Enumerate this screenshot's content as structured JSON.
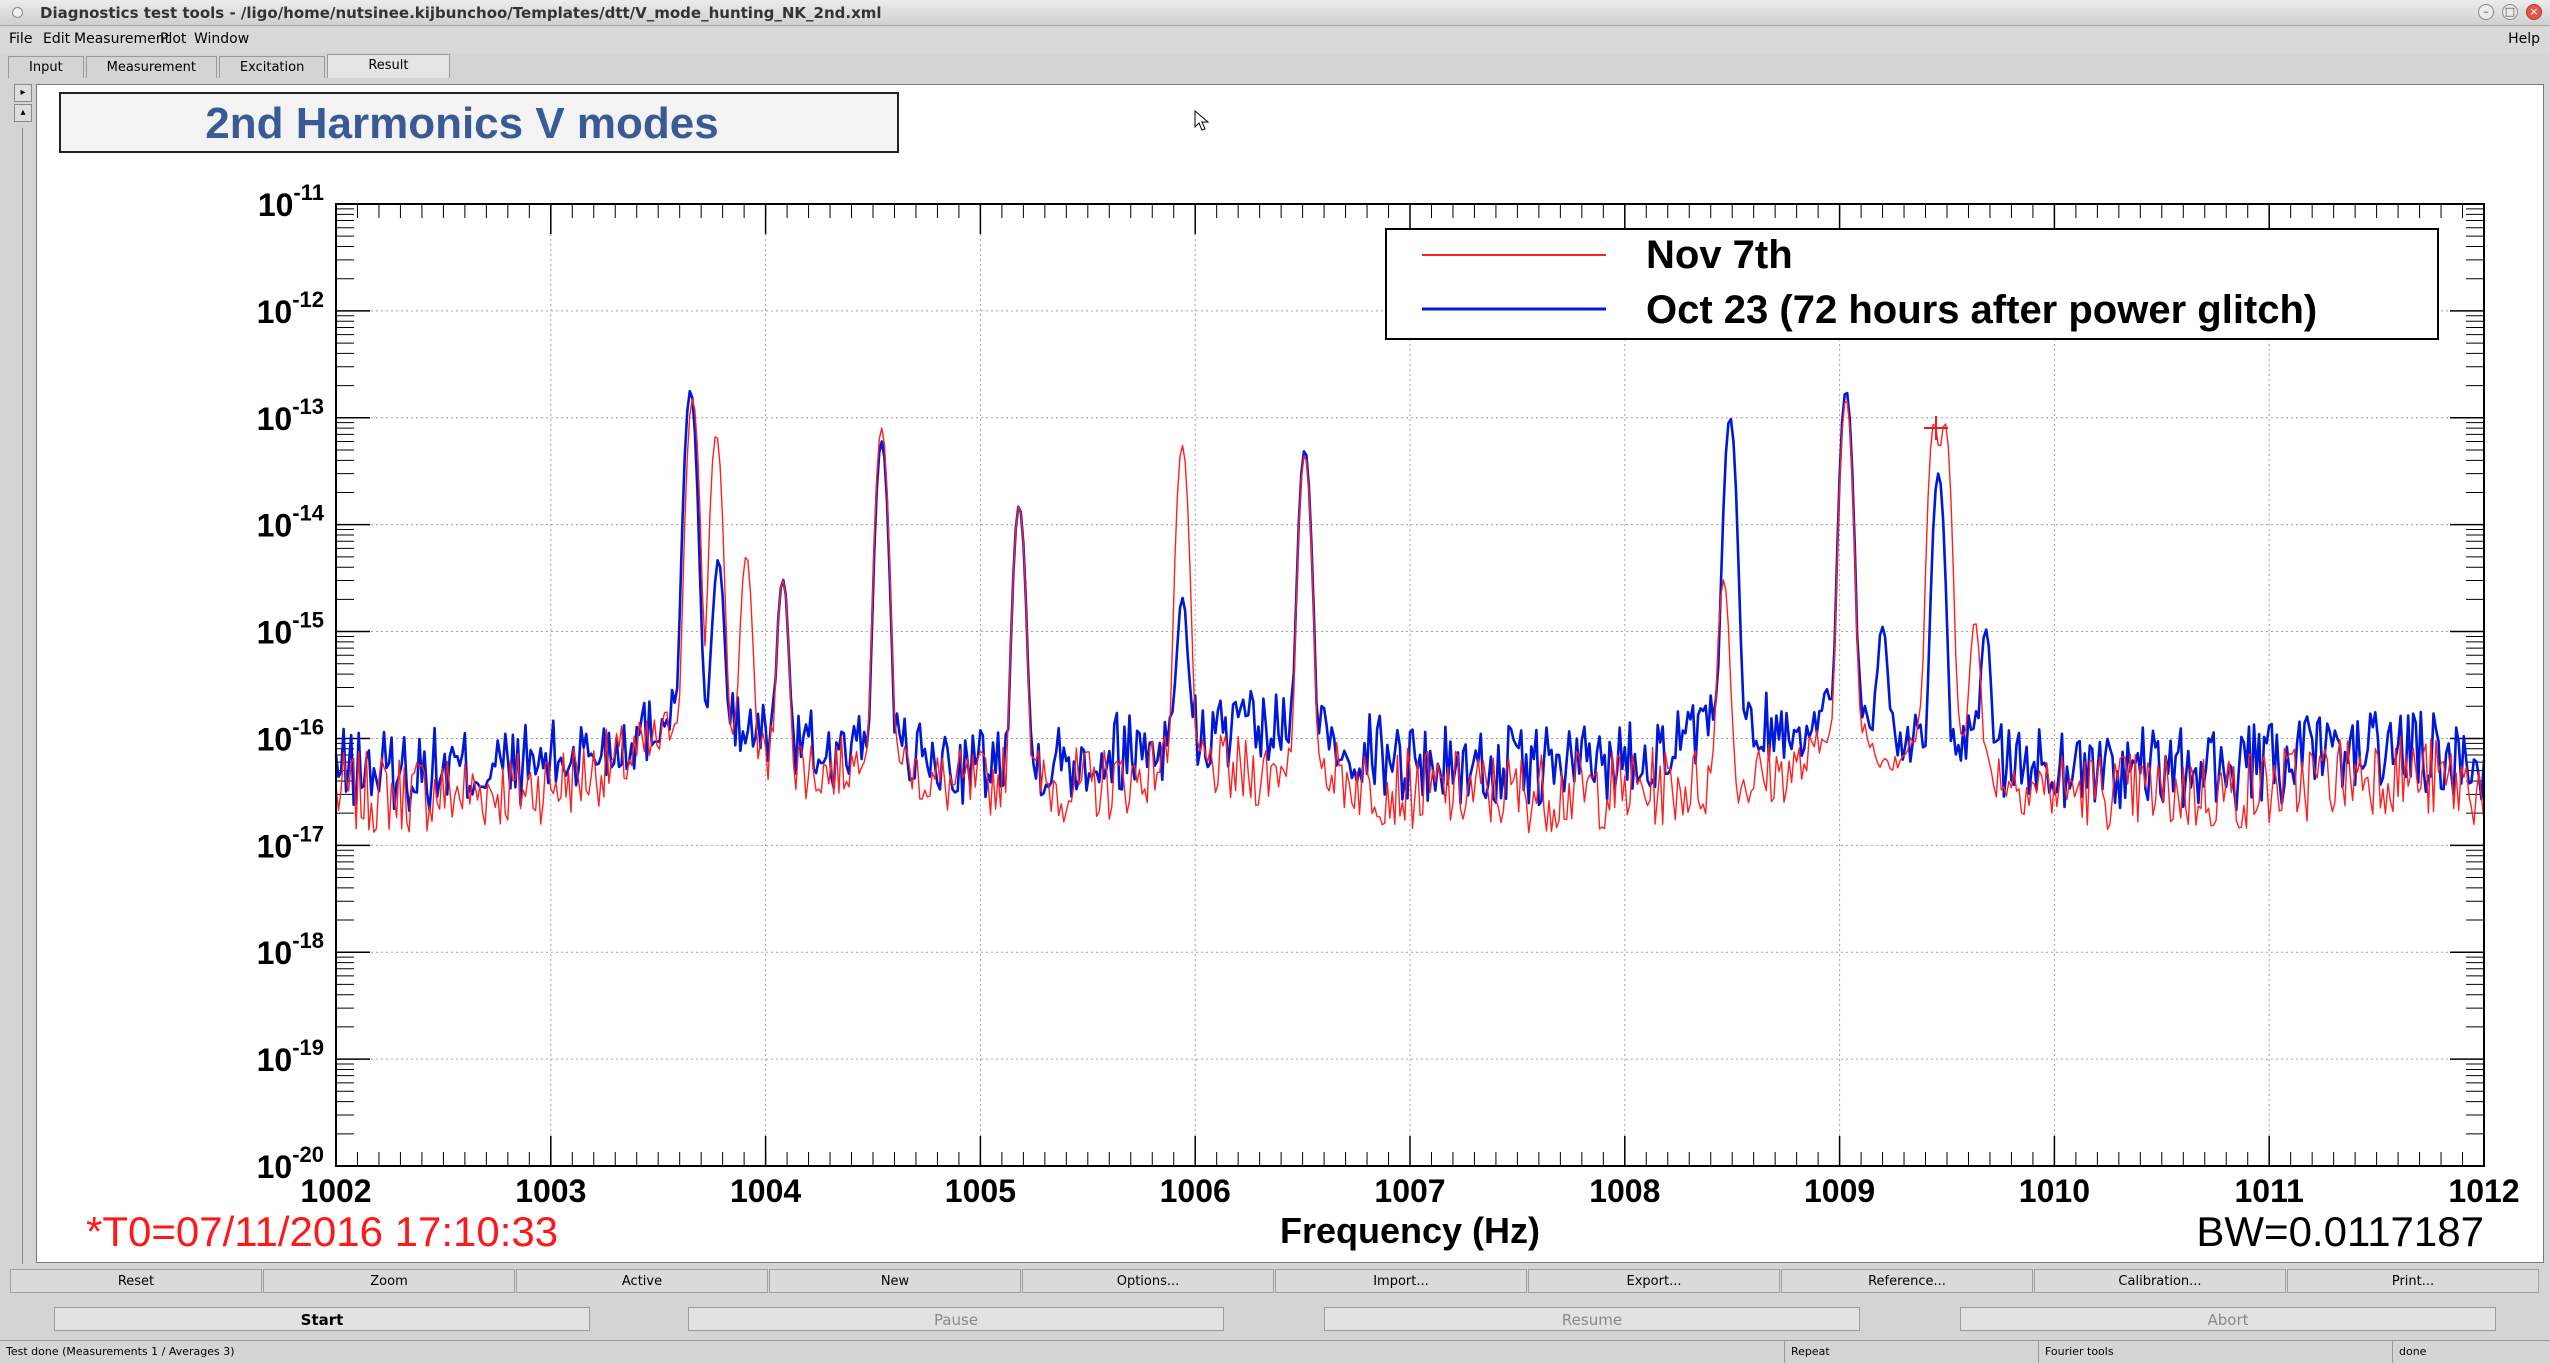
{
  "window": {
    "title": "Diagnostics test tools - /ligo/home/nutsinee.kijbunchoo/Templates/dtt/V_mode_hunting_NK_2nd.xml"
  },
  "menu": {
    "items": [
      "File",
      "Edit",
      "Measurement",
      "Plot",
      "Window"
    ],
    "help": "Help"
  },
  "tabs": [
    "Input",
    "Measurement",
    "Excitation",
    "Result"
  ],
  "plot": {
    "title": "2nd Harmonics V modes",
    "t0_label": "*T0=07/11/2016 17:10:33",
    "bw_label": "BW=0.0117187"
  },
  "chart_data": {
    "type": "line",
    "title": "2nd Harmonics V modes",
    "xlabel": "Frequency (Hz)",
    "ylabel": "",
    "xlim": [
      1002,
      1012
    ],
    "ylim": [
      1e-20,
      1e-11
    ],
    "y_scale": "log",
    "grid": true,
    "legend_position": "top-right",
    "x_ticks": [
      "1002",
      "1003",
      "1004",
      "1005",
      "1006",
      "1007",
      "1008",
      "1009",
      "1010",
      "1011",
      "1012"
    ],
    "y_tick_exponents": [
      "-11",
      "-12",
      "-13",
      "-14",
      "-15",
      "-16",
      "-17",
      "-18",
      "-19",
      "-20"
    ],
    "series": [
      {
        "name": "Nov 7th",
        "color": "#ff2020",
        "baseline": 3e-17,
        "peaks": [
          {
            "x": 1003.66,
            "y": 1.5e-13
          },
          {
            "x": 1003.77,
            "y": 7e-14
          },
          {
            "x": 1003.91,
            "y": 5e-15
          },
          {
            "x": 1004.08,
            "y": 3e-15
          },
          {
            "x": 1004.54,
            "y": 8e-14
          },
          {
            "x": 1005.18,
            "y": 1.5e-14
          },
          {
            "x": 1005.94,
            "y": 5.5e-14
          },
          {
            "x": 1006.51,
            "y": 4.5e-14
          },
          {
            "x": 1008.46,
            "y": 3e-15
          },
          {
            "x": 1009.03,
            "y": 1.5e-13
          },
          {
            "x": 1009.44,
            "y": 9e-14
          },
          {
            "x": 1009.49,
            "y": 9e-14
          },
          {
            "x": 1009.63,
            "y": 1.2e-15
          }
        ]
      },
      {
        "name": "Oct 23 (72 hours after power glitch)",
        "color": "#0018d8",
        "baseline": 5e-17,
        "peaks": [
          {
            "x": 1003.65,
            "y": 1.8e-13
          },
          {
            "x": 1003.78,
            "y": 4.5e-15
          },
          {
            "x": 1004.08,
            "y": 3e-15
          },
          {
            "x": 1004.54,
            "y": 6e-14
          },
          {
            "x": 1005.18,
            "y": 1.5e-14
          },
          {
            "x": 1005.94,
            "y": 2e-15
          },
          {
            "x": 1006.51,
            "y": 5e-14
          },
          {
            "x": 1008.49,
            "y": 1e-13
          },
          {
            "x": 1009.03,
            "y": 1.8e-13
          },
          {
            "x": 1009.2,
            "y": 1e-15
          },
          {
            "x": 1009.46,
            "y": 3e-14
          },
          {
            "x": 1009.68,
            "y": 1e-15
          }
        ]
      }
    ]
  },
  "toolbar": [
    "Reset",
    "Zoom",
    "Active",
    "New",
    "Options...",
    "Import...",
    "Export...",
    "Reference...",
    "Calibration...",
    "Print..."
  ],
  "controls": {
    "start": "Start",
    "pause": "Pause",
    "resume": "Resume",
    "abort": "Abort"
  },
  "status": {
    "message": "Test done (Measurements 1 / Averages 3)",
    "repeat": "Repeat",
    "fourier": "Fourier tools",
    "state": "done"
  }
}
